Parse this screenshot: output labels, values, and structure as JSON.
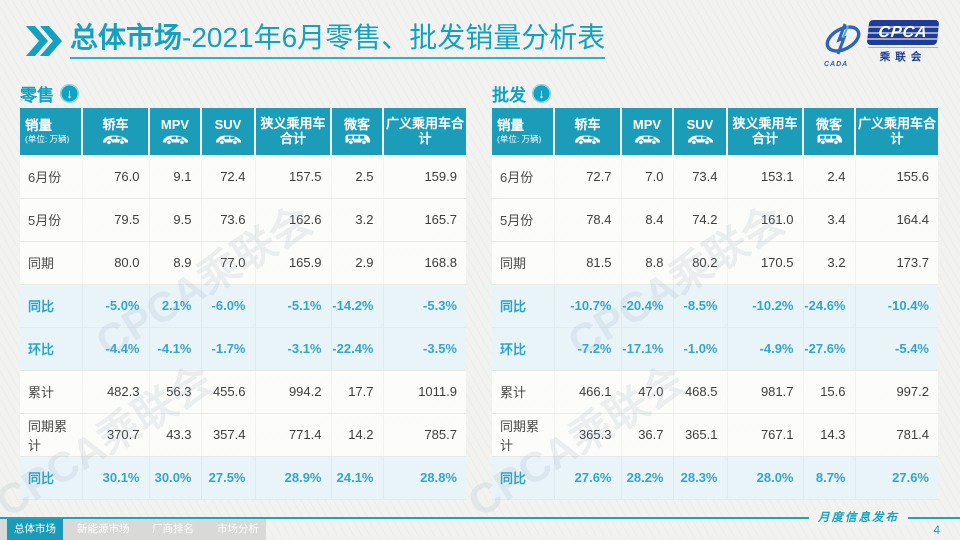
{
  "header": {
    "title_strong": "总体市场",
    "title_rest": "-2021年6月零售、批发销量分析表"
  },
  "logo": {
    "swoosh_caption": "CADA",
    "cpca": "CPCA",
    "subtitle": "乘联会"
  },
  "table_columns": {
    "sales": "销量",
    "unit": "(单位: 万辆)",
    "cols": [
      {
        "label": "轿车",
        "icon": "car-icon"
      },
      {
        "label": "MPV",
        "icon": "car-icon"
      },
      {
        "label": "SUV",
        "icon": "car-icon"
      },
      {
        "label": "狭义乘用车合计",
        "icon": ""
      },
      {
        "label": "微客",
        "icon": "van-icon"
      },
      {
        "label": "广义乘用车合计",
        "icon": ""
      }
    ]
  },
  "watermark": "CPCA乘联会",
  "tables": [
    {
      "section": "零售",
      "rows": [
        {
          "label": "6月份",
          "type": "normal",
          "values": [
            "76.0",
            "9.1",
            "72.4",
            "157.5",
            "2.5",
            "159.9"
          ]
        },
        {
          "label": "5月份",
          "type": "normal",
          "values": [
            "79.5",
            "9.5",
            "73.6",
            "162.6",
            "3.2",
            "165.7"
          ]
        },
        {
          "label": "同期",
          "type": "normal",
          "values": [
            "80.0",
            "8.9",
            "77.0",
            "165.9",
            "2.9",
            "168.8"
          ]
        },
        {
          "label": "同比",
          "type": "pct",
          "values": [
            "-5.0%",
            "2.1%",
            "-6.0%",
            "-5.1%",
            "-14.2%",
            "-5.3%"
          ]
        },
        {
          "label": "环比",
          "type": "pct",
          "values": [
            "-4.4%",
            "-4.1%",
            "-1.7%",
            "-3.1%",
            "-22.4%",
            "-3.5%"
          ]
        },
        {
          "label": "累计",
          "type": "normal",
          "values": [
            "482.3",
            "56.3",
            "455.6",
            "994.2",
            "17.7",
            "1011.9"
          ]
        },
        {
          "label": "同期累计",
          "type": "normal",
          "values": [
            "370.7",
            "43.3",
            "357.4",
            "771.4",
            "14.2",
            "785.7"
          ]
        },
        {
          "label": "同比",
          "type": "pct",
          "values": [
            "30.1%",
            "30.0%",
            "27.5%",
            "28.9%",
            "24.1%",
            "28.8%"
          ]
        }
      ]
    },
    {
      "section": "批发",
      "rows": [
        {
          "label": "6月份",
          "type": "normal",
          "values": [
            "72.7",
            "7.0",
            "73.4",
            "153.1",
            "2.4",
            "155.6"
          ]
        },
        {
          "label": "5月份",
          "type": "normal",
          "values": [
            "78.4",
            "8.4",
            "74.2",
            "161.0",
            "3.4",
            "164.4"
          ]
        },
        {
          "label": "同期",
          "type": "normal",
          "values": [
            "81.5",
            "8.8",
            "80.2",
            "170.5",
            "3.2",
            "173.7"
          ]
        },
        {
          "label": "同比",
          "type": "pct",
          "values": [
            "-10.7%",
            "-20.4%",
            "-8.5%",
            "-10.2%",
            "-24.6%",
            "-10.4%"
          ]
        },
        {
          "label": "环比",
          "type": "pct",
          "values": [
            "-7.2%",
            "-17.1%",
            "-1.0%",
            "-4.9%",
            "-27.6%",
            "-5.4%"
          ]
        },
        {
          "label": "累计",
          "type": "normal",
          "values": [
            "466.1",
            "47.0",
            "468.5",
            "981.7",
            "15.6",
            "997.2"
          ]
        },
        {
          "label": "同期累计",
          "type": "normal",
          "values": [
            "365.3",
            "36.7",
            "365.1",
            "767.1",
            "14.3",
            "781.4"
          ]
        },
        {
          "label": "同比",
          "type": "pct",
          "values": [
            "27.6%",
            "28.2%",
            "28.3%",
            "28.0%",
            "8.7%",
            "27.6%"
          ]
        }
      ]
    }
  ],
  "footer": {
    "nav": [
      "总体市场",
      "新能源市场",
      "厂商排名",
      "市场分析"
    ],
    "publish": "月度信息发布",
    "page": "4"
  },
  "colors": {
    "teal_header": "#1b9cb8",
    "teal_title": "#14a1c0",
    "pct_text": "#34a5ca",
    "pct_row_bg": "#e9f4f9",
    "logo_blue": "#1e3c96"
  }
}
